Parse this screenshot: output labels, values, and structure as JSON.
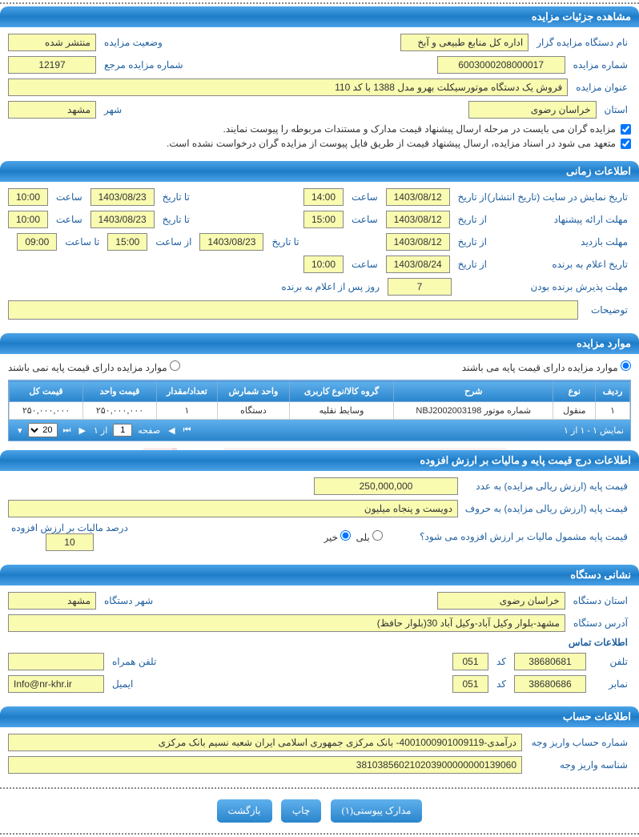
{
  "colors": {
    "header_grad_top": "#4ba3e8",
    "header_grad_mid": "#1e7cc7",
    "field_bg": "#f8fbb0",
    "label_color": "#2060a0",
    "border": "#888888",
    "table_border": "#7aa8d8",
    "watermark_red": "#c23030"
  },
  "sections": {
    "details": {
      "title": "مشاهده جزئیات مزایده",
      "org_label": "نام دستگاه مزایده گزار",
      "org_value": "اداره کل منابع طبیعی و آبخ",
      "status_label": "وضعیت مزایده",
      "status_value": "منتشر شده",
      "auction_no_label": "شماره مزایده",
      "auction_no_value": "6003000208000017",
      "ref_no_label": "شماره مزایده مرجع",
      "ref_no_value": "12197",
      "title_label": "عنوان مزایده",
      "title_value": "فروش یک دستگاه موتورسیکلت بهرو مدل 1388 با کد 110",
      "province_label": "استان",
      "province_value": "خراسان رضوی",
      "city_label": "شهر",
      "city_value": "مشهد",
      "check1": "مزایده گران می بایست در مرحله ارسال پیشنهاد قیمت مدارک و مستندات مربوطه را پیوست نمایند.",
      "check2": "متعهد می شود در اسناد مزایده، ارسال پیشنهاد قیمت از طریق فایل پیوست از مزایده گران درخواست نشده است."
    },
    "time": {
      "title": "اطلاعات زمانی",
      "display_label": "تاریخ نمایش در سایت (تاریخ انتشار)",
      "from_label": "از تاریخ",
      "to_label": "تا تاریخ",
      "hour_label": "ساعت",
      "from_hour_label": "از ساعت",
      "to_hour_label": "تا ساعت",
      "display_from_date": "1403/08/12",
      "display_from_hour": "14:00",
      "display_to_date": "1403/08/23",
      "display_to_hour": "10:00",
      "propose_label": "مهلت ارائه پیشنهاد",
      "propose_from_date": "1403/08/12",
      "propose_from_hour": "15:00",
      "propose_to_date": "1403/08/23",
      "propose_to_hour": "10:00",
      "visit_label": "مهلت بازدید",
      "visit_from_date": "1403/08/12",
      "visit_to_date": "1403/08/23",
      "visit_from_hour": "15:00",
      "visit_to_hour": "09:00",
      "winner_label": "تاریخ اعلام به برنده",
      "winner_date": "1403/08/24",
      "winner_hour": "10:00",
      "accept_label": "مهلت پذیرش برنده بودن",
      "accept_days": "7",
      "accept_suffix": "روز پس از اعلام به برنده",
      "desc_label": "توضیحات",
      "desc_value": ""
    },
    "items": {
      "title": "موارد مزایده",
      "radio_has_base": "موارد مزایده دارای قیمت پایه می باشند",
      "radio_no_base": "موارد مزایده دارای قیمت پایه نمی باشند",
      "columns": [
        "ردیف",
        "نوع",
        "شرح",
        "گروه کالا/نوع کاربری",
        "واحد شمارش",
        "تعداد/مقدار",
        "قیمت واحد",
        "قیمت کل"
      ],
      "rows": [
        [
          "۱",
          "منقول",
          "شماره موتور NBJ2002003198",
          "وسایط نقلیه",
          "دستگاه",
          "۱",
          "۲۵۰,۰۰۰,۰۰۰",
          "۲۵۰,۰۰۰,۰۰۰"
        ]
      ],
      "pager_display": "نمایش ۱ - ۱ از ۱",
      "pager_page_label": "صفحه",
      "pager_page_value": "1",
      "pager_of": "از ۱",
      "pager_size": "20"
    },
    "base_price": {
      "title": "اطلاعات درج قیمت پایه و مالیات بر ارزش افزوده",
      "num_label": "قیمت پایه (ارزش ریالی مزایده) به عدد",
      "num_value": "250,000,000",
      "words_label": "قیمت پایه (ارزش ریالی مزایده) به حروف",
      "words_value": "دویست و پنجاه میلیون",
      "vat_q": "قیمت پایه مشمول مالیات بر ارزش افزوده می شود؟",
      "vat_yes": "بلی",
      "vat_no": "خیر",
      "vat_pct_label": "درصد مالیات بر ارزش افزوده",
      "vat_pct_value": "10"
    },
    "address": {
      "title": "نشانی دستگاه",
      "province_label": "استان دستگاه",
      "province_value": "خراسان رضوی",
      "city_label": "شهر دستگاه",
      "city_value": "مشهد",
      "addr_label": "آدرس دستگاه",
      "addr_value": "مشهد-بلوار وکیل آباد-وکیل آباد 30(بلوار حافظ)",
      "contact_title": "اطلاعات تماس",
      "phone_label": "تلفن",
      "phone_value": "38680681",
      "code_label": "کد",
      "phone_code": "051",
      "mobile_label": "تلفن همراه",
      "mobile_value": "",
      "fax_label": "نمابر",
      "fax_value": "38680686",
      "fax_code": "051",
      "email_label": "ایمیل",
      "email_value": "Info@nr-khr.ir"
    },
    "account": {
      "title": "اطلاعات حساب",
      "acct_label": "شماره حساب واریز وجه",
      "acct_value": "درآمدی-4001000901009119- بانک مرکزی جمهوری اسلامی ایران شعبه نسیم بانک مرکزی",
      "id_label": "شناسه واریز وجه",
      "id_value": "381038560210203900000000139060"
    }
  },
  "buttons": {
    "attach": "مدارک پیوستی(۱)",
    "print": "چاپ",
    "back": "بازگشت"
  }
}
